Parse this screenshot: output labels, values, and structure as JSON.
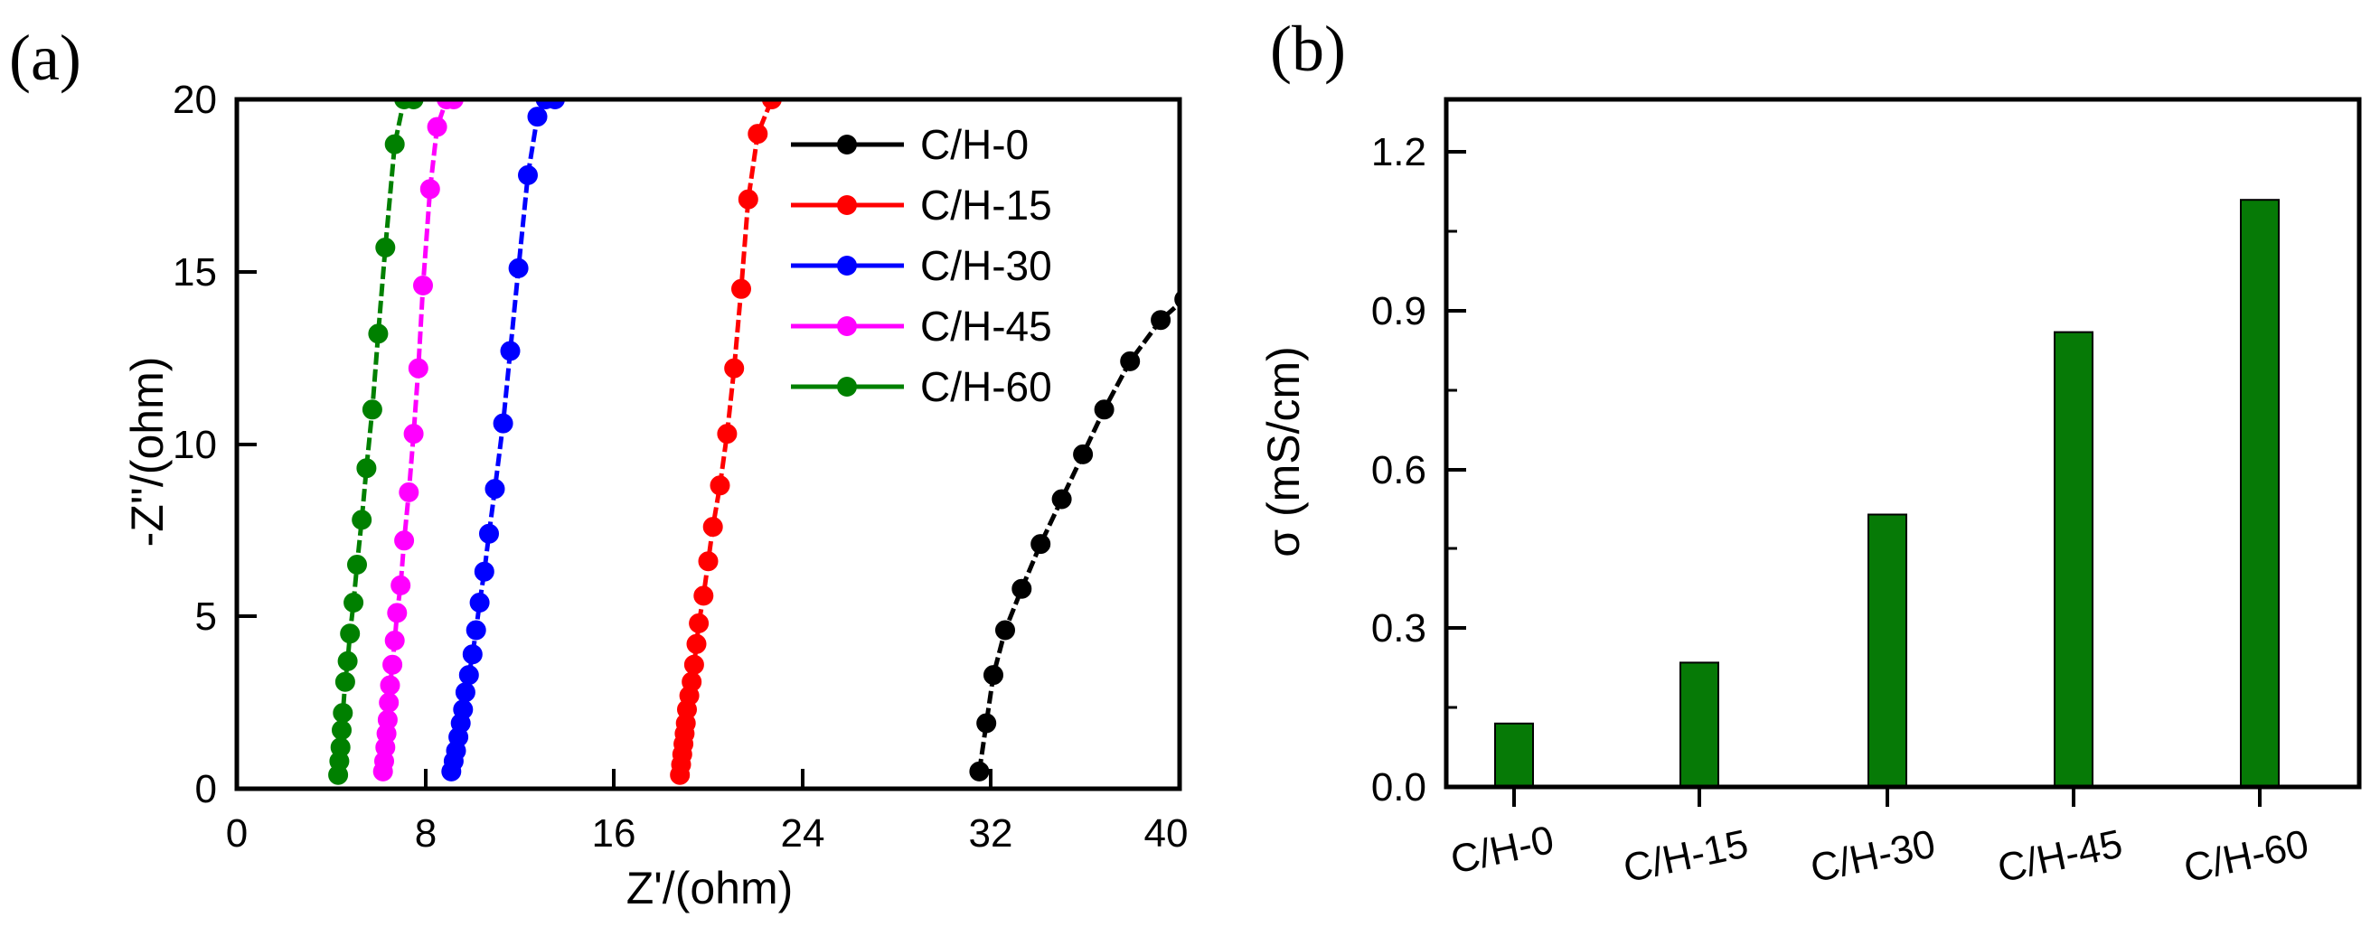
{
  "chart_data": [
    {
      "type": "scatter",
      "panel_label": "(a)",
      "xlabel": "Z'/(ohm)",
      "ylabel": "-Z''/(ohm)",
      "xlim": [
        0,
        40
      ],
      "ylim": [
        0,
        20
      ],
      "xticks": [
        "0",
        "8",
        "16",
        "24",
        "32",
        "40"
      ],
      "yticks": [
        "0",
        "5",
        "10",
        "15",
        "20"
      ],
      "legend_position": "top-right",
      "series": [
        {
          "name": "C/H-0",
          "color": "#000000",
          "x": [
            31.5,
            31.8,
            32.1,
            32.6,
            33.3,
            34.1,
            35.0,
            35.9,
            36.8,
            37.9,
            39.2,
            40.2
          ],
          "y": [
            0.5,
            1.9,
            3.3,
            4.6,
            5.8,
            7.1,
            8.4,
            9.7,
            11.0,
            12.4,
            13.6,
            14.2
          ]
        },
        {
          "name": "C/H-15",
          "color": "#ff0000",
          "x": [
            18.8,
            18.85,
            18.9,
            18.95,
            19.0,
            19.05,
            19.1,
            19.2,
            19.3,
            19.4,
            19.5,
            19.6,
            19.8,
            20.0,
            20.2,
            20.5,
            20.8,
            21.1,
            21.4,
            21.7,
            22.1,
            22.7
          ],
          "y": [
            0.4,
            0.7,
            1.0,
            1.3,
            1.6,
            1.9,
            2.3,
            2.7,
            3.1,
            3.6,
            4.2,
            4.8,
            5.6,
            6.6,
            7.6,
            8.8,
            10.3,
            12.2,
            14.5,
            17.1,
            19.0,
            20.0
          ]
        },
        {
          "name": "C/H-30",
          "color": "#0000ff",
          "x": [
            9.1,
            9.2,
            9.3,
            9.4,
            9.5,
            9.6,
            9.7,
            9.85,
            10.0,
            10.15,
            10.3,
            10.5,
            10.7,
            10.95,
            11.3,
            11.6,
            11.95,
            12.35,
            12.75,
            13.1,
            13.5
          ],
          "y": [
            0.5,
            0.8,
            1.1,
            1.5,
            1.9,
            2.3,
            2.8,
            3.3,
            3.9,
            4.6,
            5.4,
            6.3,
            7.4,
            8.7,
            10.6,
            12.7,
            15.1,
            17.8,
            19.5,
            20.0,
            20.0
          ]
        },
        {
          "name": "C/H-45",
          "color": "#ff00ff",
          "x": [
            6.2,
            6.25,
            6.3,
            6.35,
            6.4,
            6.45,
            6.5,
            6.6,
            6.7,
            6.8,
            6.95,
            7.1,
            7.3,
            7.5,
            7.7,
            7.9,
            8.2,
            8.5,
            8.9,
            9.2
          ],
          "y": [
            0.5,
            0.8,
            1.2,
            1.6,
            2.0,
            2.5,
            3.0,
            3.6,
            4.3,
            5.1,
            5.9,
            7.2,
            8.6,
            10.3,
            12.2,
            14.6,
            17.4,
            19.2,
            20.0,
            20.0
          ]
        },
        {
          "name": "C/H-60",
          "color": "#008000",
          "x": [
            4.3,
            4.35,
            4.4,
            4.45,
            4.5,
            4.6,
            4.7,
            4.8,
            4.95,
            5.1,
            5.3,
            5.5,
            5.75,
            6.0,
            6.3,
            6.7,
            7.1,
            7.5
          ],
          "y": [
            0.4,
            0.8,
            1.2,
            1.7,
            2.2,
            3.1,
            3.7,
            4.5,
            5.4,
            6.5,
            7.8,
            9.3,
            11.0,
            13.2,
            15.7,
            18.7,
            20.0,
            20.0
          ]
        }
      ]
    },
    {
      "type": "bar",
      "panel_label": "(b)",
      "xlabel": "",
      "ylabel": "σ (mS/cm)",
      "ylim": [
        0,
        1.3
      ],
      "yticks": [
        "0.0",
        "0.3",
        "0.6",
        "0.9",
        "1.2"
      ],
      "categories": [
        "C/H-0",
        "C/H-15",
        "C/H-30",
        "C/H-45",
        "C/H-60"
      ],
      "values": [
        0.12,
        0.235,
        0.515,
        0.86,
        1.11
      ],
      "bar_color": "#067a06"
    }
  ]
}
